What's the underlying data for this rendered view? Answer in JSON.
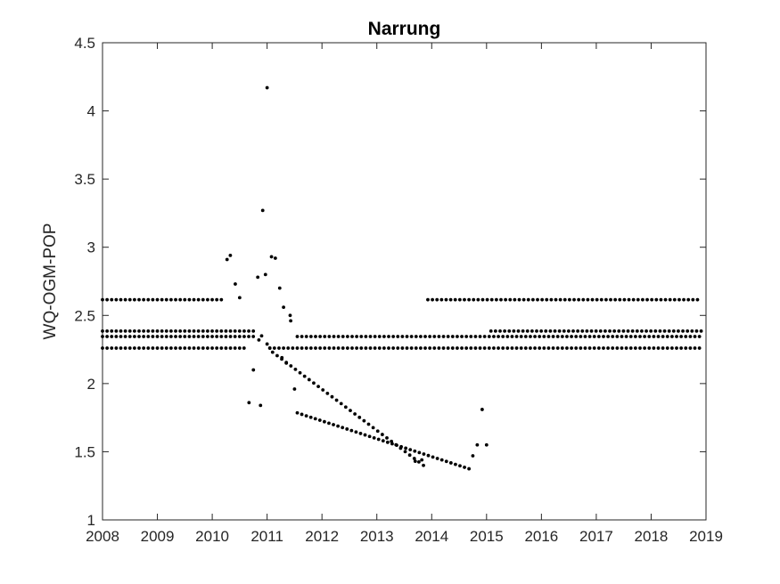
{
  "chart_data": {
    "type": "scatter",
    "title": "Narrung",
    "xlabel": "",
    "ylabel": "WQ-OGM-POP",
    "xlim": [
      2008,
      2019
    ],
    "ylim": [
      1,
      4.5
    ],
    "xticks": [
      2008,
      2009,
      2010,
      2011,
      2012,
      2013,
      2014,
      2015,
      2016,
      2017,
      2018,
      2019
    ],
    "xtick_labels": [
      "2008",
      "2009",
      "2010",
      "2011",
      "2012",
      "2013",
      "2014",
      "2015",
      "2016",
      "2017",
      "2018",
      "2019"
    ],
    "yticks": [
      1,
      1.5,
      2,
      2.5,
      3,
      3.5,
      4,
      4.5
    ],
    "ytick_labels": [
      "1",
      "1.5",
      "2",
      "2.5",
      "3",
      "3.5",
      "4",
      "4.5"
    ],
    "grid": false,
    "marker_color": "#000000",
    "series": [
      {
        "description_kind": "constant-runs",
        "runs": [
          {
            "x_start": 2008.0,
            "x_end": 2010.18,
            "y": 2.615
          },
          {
            "x_start": 2013.93,
            "x_end": 2018.92,
            "y": 2.615
          },
          {
            "x_start": 2008.0,
            "x_end": 2010.75,
            "y": 2.385
          },
          {
            "x_start": 2015.08,
            "x_end": 2018.92,
            "y": 2.385
          },
          {
            "x_start": 2008.0,
            "x_end": 2010.75,
            "y": 2.345
          },
          {
            "x_start": 2011.55,
            "x_end": 2018.92,
            "y": 2.345
          },
          {
            "x_start": 2008.0,
            "x_end": 2010.55,
            "y": 2.26
          },
          {
            "x_start": 2011.05,
            "x_end": 2018.92,
            "y": 2.26
          }
        ],
        "step": 0.0833
      },
      {
        "description_kind": "linear-runs",
        "runs": [
          {
            "x_start": 2011.1,
            "y_start": 2.23,
            "x_end": 2013.85,
            "y_end": 1.4
          },
          {
            "x_start": 2011.55,
            "y_start": 1.785,
            "x_end": 2014.68,
            "y_end": 1.375
          }
        ],
        "step": 0.0833
      },
      {
        "description_kind": "points",
        "x": [
          2010.27,
          2010.33,
          2010.42,
          2010.5,
          2010.58,
          2010.67,
          2010.75,
          2010.83,
          2010.88,
          2010.92,
          2010.97,
          2011.0,
          2011.08,
          2011.15,
          2011.23,
          2011.3,
          2011.42,
          2011.43,
          2011.5,
          2011.0,
          2011.05,
          2010.9,
          2010.85,
          2011.27,
          2011.35,
          2013.7,
          2013.82,
          2014.75,
          2014.83,
          2014.92,
          2015.0
        ],
        "y": [
          2.91,
          2.94,
          2.73,
          2.63,
          2.26,
          1.86,
          2.1,
          2.78,
          1.84,
          3.27,
          2.8,
          4.17,
          2.93,
          2.92,
          2.7,
          2.56,
          2.5,
          2.46,
          1.96,
          2.29,
          2.26,
          2.35,
          2.32,
          2.19,
          2.15,
          1.43,
          1.44,
          1.47,
          1.55,
          1.81,
          1.55
        ]
      }
    ]
  }
}
